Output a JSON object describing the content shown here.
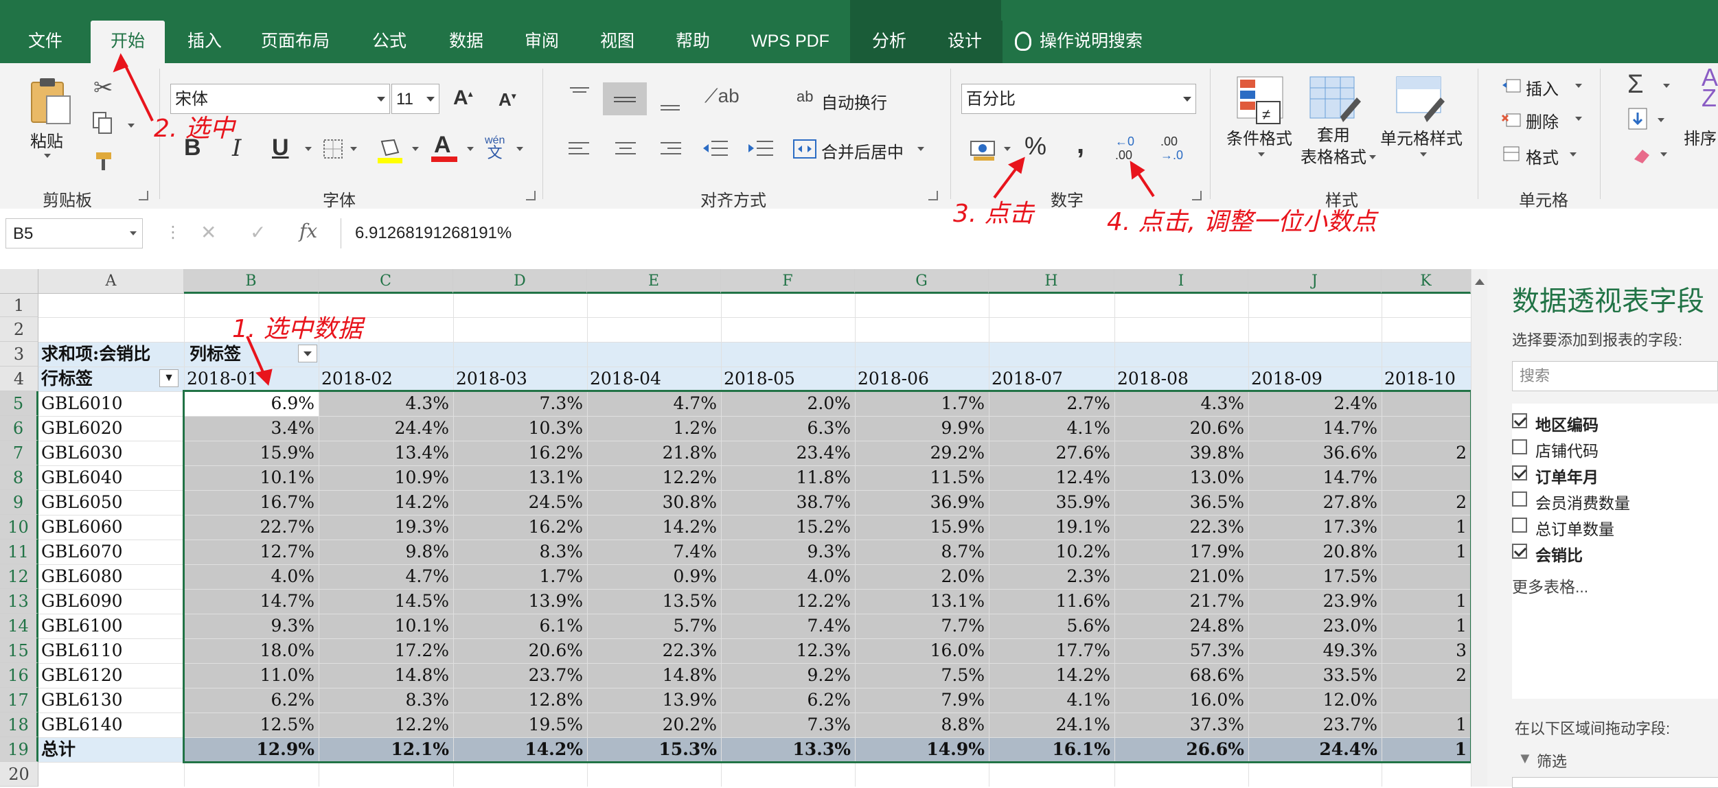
{
  "tabs": [
    "文件",
    "开始",
    "插入",
    "页面布局",
    "公式",
    "数据",
    "审阅",
    "视图",
    "帮助",
    "WPS PDF",
    "分析",
    "设计"
  ],
  "search_label": "操作说明搜索",
  "ribbon": {
    "clipboard": {
      "paste": "粘贴",
      "label": "剪贴板"
    },
    "font": {
      "name": "宋体",
      "size": "11",
      "label": "字体",
      "bold": "B",
      "italic": "I",
      "underline": "U",
      "phonetic_top": "wén",
      "phonetic_bottom": "文"
    },
    "align": {
      "wrap": "自动换行",
      "merge": "合并后居中",
      "label": "对齐方式"
    },
    "number": {
      "format": "百分比",
      "percent": "%",
      "comma": ",",
      "label": "数字",
      "inc_top": "←0",
      "inc_bottom": ".00",
      "dec_top": ".00",
      "dec_bottom": "→.0"
    },
    "styles": {
      "cond": "条件格式",
      "table1": "套用",
      "table2": "表格格式",
      "cell": "单元格样式",
      "label": "样式"
    },
    "cells": {
      "insert": "插入",
      "delete": "删除",
      "format": "格式",
      "label": "单元格"
    },
    "editing": {
      "sort": "排序"
    }
  },
  "formula_bar": {
    "namebox": "B5",
    "value": "6.91268191268191%",
    "fx": "fx"
  },
  "columns": [
    "A",
    "B",
    "C",
    "D",
    "E",
    "F",
    "G",
    "H",
    "I",
    "J",
    "K"
  ],
  "rows": [
    "1",
    "2",
    "3",
    "4",
    "5",
    "6",
    "7",
    "8",
    "9",
    "10",
    "11",
    "12",
    "13",
    "14",
    "15",
    "16",
    "17",
    "18",
    "19",
    "20"
  ],
  "pivot": {
    "value_label": "求和项:会销比",
    "col_label": "列标签",
    "row_label": "行标签",
    "months": [
      "2018-01",
      "2018-02",
      "2018-03",
      "2018-04",
      "2018-05",
      "2018-06",
      "2018-07",
      "2018-08",
      "2018-09",
      "2018-10"
    ],
    "data": [
      {
        "code": "GBL6010",
        "vals": [
          "6.9%",
          "4.3%",
          "7.3%",
          "4.7%",
          "2.0%",
          "1.7%",
          "2.7%",
          "4.3%",
          "2.4%",
          ""
        ]
      },
      {
        "code": "GBL6020",
        "vals": [
          "3.4%",
          "24.4%",
          "10.3%",
          "1.2%",
          "6.3%",
          "9.9%",
          "4.1%",
          "20.6%",
          "14.7%",
          ""
        ]
      },
      {
        "code": "GBL6030",
        "vals": [
          "15.9%",
          "13.4%",
          "16.2%",
          "21.8%",
          "23.4%",
          "29.2%",
          "27.6%",
          "39.8%",
          "36.6%",
          "2"
        ]
      },
      {
        "code": "GBL6040",
        "vals": [
          "10.1%",
          "10.9%",
          "13.1%",
          "12.2%",
          "11.8%",
          "11.5%",
          "12.4%",
          "13.0%",
          "14.7%",
          ""
        ]
      },
      {
        "code": "GBL6050",
        "vals": [
          "16.7%",
          "14.2%",
          "24.5%",
          "30.8%",
          "38.7%",
          "36.9%",
          "35.9%",
          "36.5%",
          "27.8%",
          "2"
        ]
      },
      {
        "code": "GBL6060",
        "vals": [
          "22.7%",
          "19.3%",
          "16.2%",
          "14.2%",
          "15.2%",
          "15.9%",
          "19.1%",
          "22.3%",
          "17.3%",
          "1"
        ]
      },
      {
        "code": "GBL6070",
        "vals": [
          "12.7%",
          "9.8%",
          "8.3%",
          "7.4%",
          "9.3%",
          "8.7%",
          "10.2%",
          "17.9%",
          "20.8%",
          "1"
        ]
      },
      {
        "code": "GBL6080",
        "vals": [
          "4.0%",
          "4.7%",
          "1.7%",
          "0.9%",
          "4.0%",
          "2.0%",
          "2.3%",
          "21.0%",
          "17.5%",
          ""
        ]
      },
      {
        "code": "GBL6090",
        "vals": [
          "14.7%",
          "14.5%",
          "13.9%",
          "13.5%",
          "12.2%",
          "13.1%",
          "11.6%",
          "21.7%",
          "23.9%",
          "1"
        ]
      },
      {
        "code": "GBL6100",
        "vals": [
          "9.3%",
          "10.1%",
          "6.1%",
          "5.7%",
          "7.4%",
          "7.7%",
          "5.6%",
          "24.8%",
          "23.0%",
          "1"
        ]
      },
      {
        "code": "GBL6110",
        "vals": [
          "18.0%",
          "17.2%",
          "20.6%",
          "22.3%",
          "12.3%",
          "16.0%",
          "17.7%",
          "57.3%",
          "49.3%",
          "3"
        ]
      },
      {
        "code": "GBL6120",
        "vals": [
          "11.0%",
          "14.8%",
          "23.7%",
          "14.8%",
          "9.2%",
          "7.5%",
          "14.2%",
          "68.6%",
          "33.5%",
          "2"
        ]
      },
      {
        "code": "GBL6130",
        "vals": [
          "6.2%",
          "8.3%",
          "12.8%",
          "13.9%",
          "6.2%",
          "7.9%",
          "4.1%",
          "16.0%",
          "12.0%",
          ""
        ]
      },
      {
        "code": "GBL6140",
        "vals": [
          "12.5%",
          "12.2%",
          "19.5%",
          "20.2%",
          "7.3%",
          "8.8%",
          "24.1%",
          "37.3%",
          "23.7%",
          "1"
        ]
      }
    ],
    "total_label": "总计",
    "totals": [
      "12.9%",
      "12.1%",
      "14.2%",
      "15.3%",
      "13.3%",
      "14.9%",
      "16.1%",
      "26.6%",
      "24.4%",
      "1"
    ]
  },
  "field_pane": {
    "title": "数据透视表字段",
    "subtitle": "选择要添加到报表的字段:",
    "search_placeholder": "搜索",
    "fields": [
      {
        "label": "地区编码",
        "checked": true
      },
      {
        "label": "店铺代码",
        "checked": false
      },
      {
        "label": "订单年月",
        "checked": true
      },
      {
        "label": "会员消费数量",
        "checked": false
      },
      {
        "label": "总订单数量",
        "checked": false
      },
      {
        "label": "会销比",
        "checked": true
      }
    ],
    "more": "更多表格...",
    "drag_label": "在以下区域间拖动字段:",
    "filter": "筛选"
  },
  "annotations": {
    "a1": "1. 选中数据",
    "a2": "2. 选中",
    "a3": "3. 点击",
    "a4": "4. 点击, 调整一位小数点"
  },
  "colors": {
    "excel_green": "#217346",
    "selection_gray": "#c8c8c8",
    "pivot_header": "#ddebf7",
    "annotation_red": "#e8141c"
  }
}
